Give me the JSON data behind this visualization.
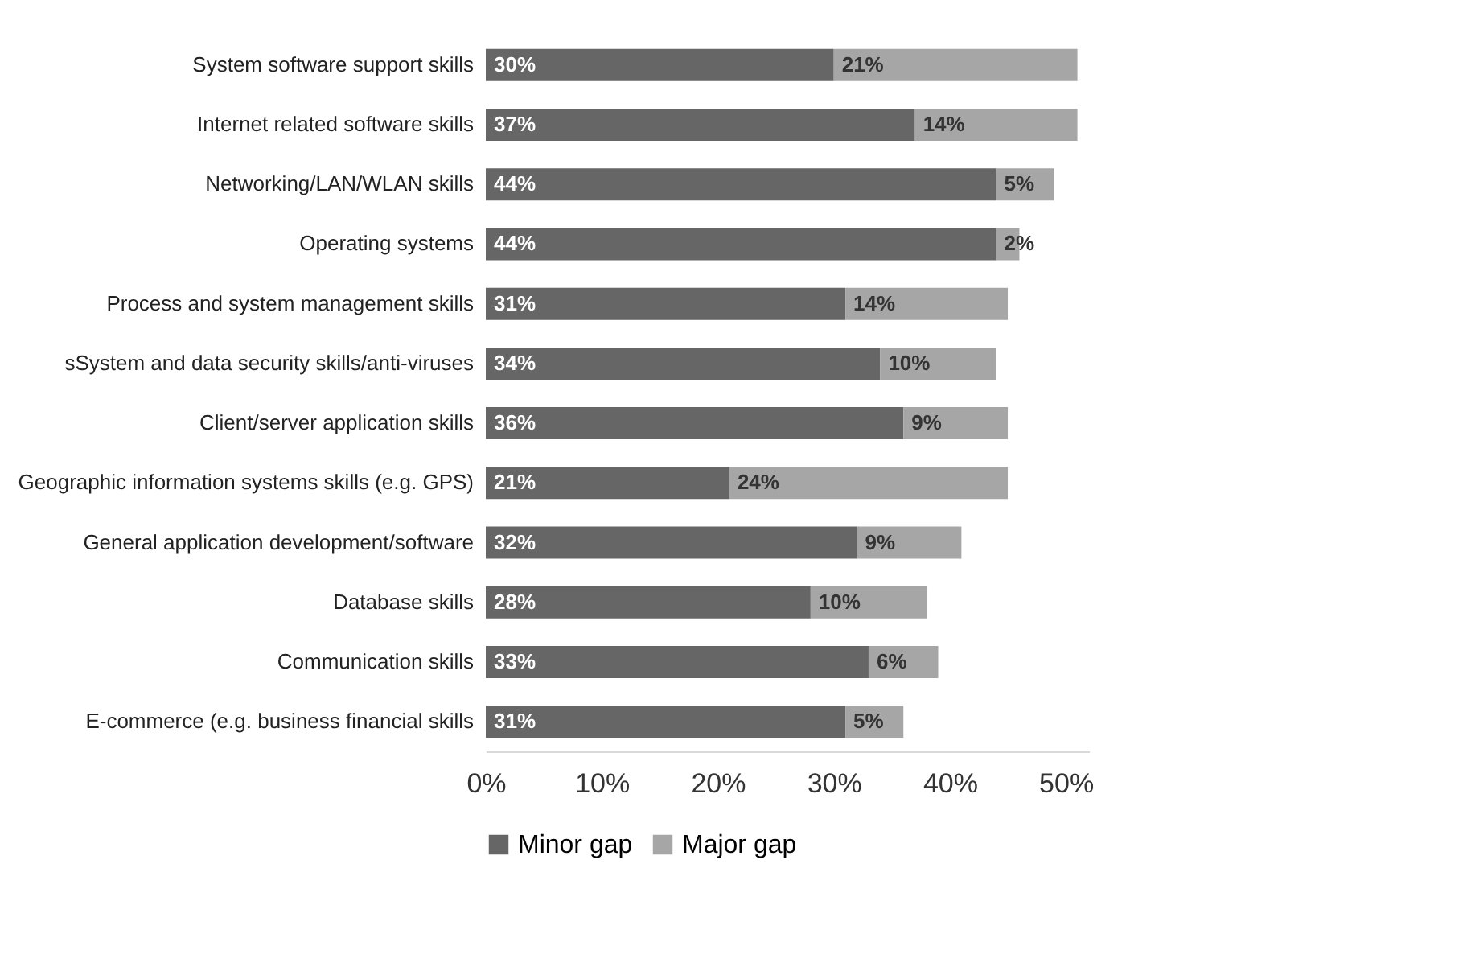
{
  "chart_data": {
    "type": "bar",
    "orientation": "horizontal",
    "stacked": true,
    "categories": [
      "System software support skills",
      "Internet related software skills",
      "Networking/LAN/WLAN skills",
      "Operating systems",
      "Process and system management skills",
      "sSystem and data security skills/anti-viruses",
      "Client/server application skills",
      "Geographic information systems skills (e.g. GPS)",
      "General application development/software",
      "Database skills",
      "Communication skills",
      "E-commerce (e.g. business financial skills"
    ],
    "series": [
      {
        "name": "Minor gap",
        "color": "#666666",
        "values": [
          30,
          37,
          44,
          44,
          31,
          34,
          36,
          21,
          32,
          28,
          33,
          31
        ],
        "value_labels": [
          "30%",
          "37%",
          "44%",
          "44%",
          "31%",
          "34%",
          "36%",
          "21%",
          "32%",
          "28%",
          "33%",
          "31%"
        ]
      },
      {
        "name": "Major gap",
        "color": "#a6a6a6",
        "values": [
          21,
          14,
          5,
          2,
          14,
          10,
          9,
          24,
          9,
          10,
          6,
          5
        ],
        "value_labels": [
          "21%",
          "14%",
          "5%",
          "2%",
          "14%",
          "10%",
          "9%",
          "24%",
          "9%",
          "10%",
          "6%",
          "5%"
        ]
      }
    ],
    "xlim": [
      0,
      52
    ],
    "xticks": [
      {
        "value": 0,
        "label": "0%"
      },
      {
        "value": 10,
        "label": "10%"
      },
      {
        "value": 20,
        "label": "20%"
      },
      {
        "value": 30,
        "label": "30%"
      },
      {
        "value": 40,
        "label": "40%"
      },
      {
        "value": 50,
        "label": "50%"
      }
    ],
    "grid": false,
    "legend": "bottom"
  }
}
